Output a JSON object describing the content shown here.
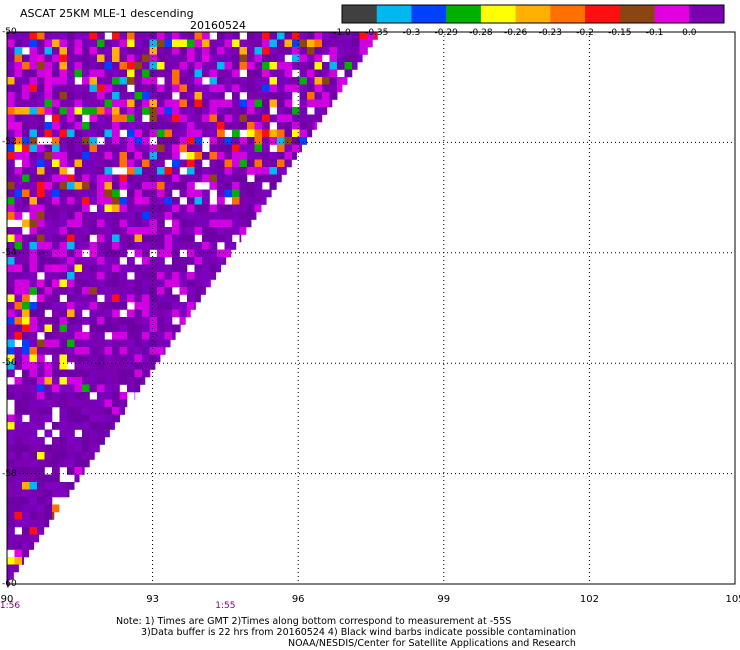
{
  "title": "ASCAT 25KM MLE-1 descending",
  "date": "20160524",
  "colorbar": {
    "labels": [
      "-1.0",
      "-0.35",
      "-0.3",
      "-0.29",
      "-0.28",
      "-0.26",
      "-0.23",
      "-0.2",
      "-0.15",
      "-0.1",
      "0.0"
    ],
    "colors": [
      "#404040",
      "#00b8f0",
      "#0040ff",
      "#00b000",
      "#ffff00",
      "#ffb000",
      "#ff7000",
      "#ff1010",
      "#8b4513",
      "#e000e0",
      "#7a00b0"
    ]
  },
  "axes": {
    "x_ticks": [
      "90",
      "93",
      "96",
      "99",
      "102",
      "105"
    ],
    "x_values": [
      90,
      93,
      96,
      99,
      102,
      105
    ],
    "y_ticks": [
      "-50",
      "-52",
      "-54",
      "-56",
      "-58",
      "-60"
    ],
    "y_values": [
      -50,
      -52,
      -54,
      -56,
      -58,
      -60
    ],
    "lon_range": [
      90,
      105
    ],
    "lat_range": [
      -60,
      -50
    ],
    "time_labels": [
      {
        "text": "1:56",
        "lon": 90
      },
      {
        "text": "1:55",
        "lon": 94.5
      }
    ]
  },
  "notes": [
    "Note: 1) Times are GMT 2)Times along bottom correspond to measurement at -55S",
    "3)Data buffer is 22 hrs from 20160524 4) Black wind barbs indicate possible contamination",
    "NOAA/NESDIS/Center for Satellite Applications and Research"
  ]
}
